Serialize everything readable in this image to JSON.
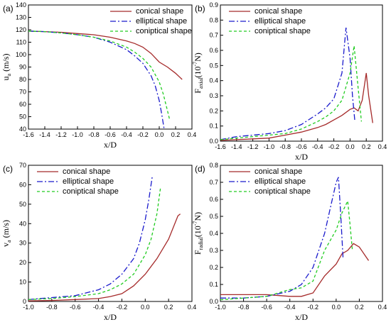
{
  "legend": {
    "conical": "conical shape",
    "elliptical": "elliptical shape",
    "coniptical": "coniptical shape"
  },
  "colors": {
    "conical": "#a52a2a",
    "elliptical": "#1a1acc",
    "coniptical": "#22cc22"
  },
  "chart_data": [
    {
      "id": "a",
      "panel_label": "(a)",
      "type": "line",
      "ylabel_main": "u",
      "ylabel_sub": "a",
      "ylabel_unit": " (m/s)",
      "xlabel": "x/D",
      "xlim": [
        -1.6,
        0.4
      ],
      "ylim": [
        40,
        140
      ],
      "xticks": [
        "-1.6",
        "-1.4",
        "-1.2",
        "-1.0",
        "-0.8",
        "-0.6",
        "-0.4",
        "-0.2",
        "0.0",
        "0.2",
        "0.4"
      ],
      "yticks": [
        "40",
        "50",
        "60",
        "70",
        "80",
        "90",
        "100",
        "110",
        "120",
        "130",
        "140"
      ],
      "legend_position": "top-right",
      "series": [
        {
          "key": "conical",
          "name": "conical shape",
          "x": [
            -1.6,
            -1.4,
            -1.2,
            -1.0,
            -0.8,
            -0.6,
            -0.4,
            -0.3,
            -0.2,
            -0.1,
            0.0,
            0.1,
            0.2,
            0.28
          ],
          "y": [
            119,
            118.5,
            118,
            117,
            116,
            114,
            111,
            109,
            106,
            101,
            94,
            90,
            85,
            80
          ]
        },
        {
          "key": "elliptical",
          "name": "elliptical shape",
          "x": [
            -1.6,
            -1.4,
            -1.2,
            -1.0,
            -0.8,
            -0.6,
            -0.4,
            -0.3,
            -0.2,
            -0.1,
            -0.05,
            0.0,
            0.03,
            0.06
          ],
          "y": [
            119,
            118.5,
            117.5,
            116,
            114,
            110,
            104,
            99,
            93,
            83,
            75,
            63,
            52,
            40
          ]
        },
        {
          "key": "coniptical",
          "name": "coniptical shape",
          "x": [
            -1.6,
            -1.4,
            -1.2,
            -1.0,
            -0.8,
            -0.6,
            -0.4,
            -0.3,
            -0.2,
            -0.1,
            0.0,
            0.05,
            0.1,
            0.13
          ],
          "y": [
            119,
            118.5,
            117.5,
            116,
            114,
            111,
            106,
            102,
            97,
            90,
            78,
            68,
            55,
            47
          ]
        }
      ]
    },
    {
      "id": "b",
      "panel_label": "(b)",
      "type": "line",
      "ylabel_main": "F",
      "ylabel_sub": "axial",
      "ylabel_unit": "(10",
      "ylabel_sup": "-7",
      "ylabel_tail": "N)",
      "xlabel": "x/D",
      "xlim": [
        -1.6,
        0.4
      ],
      "ylim": [
        0,
        0.9
      ],
      "xticks": [
        "-1.6",
        "-1.4",
        "-1.2",
        "-1.0",
        "-0.8",
        "-0.6",
        "-0.4",
        "-0.2",
        "0.0",
        "0.2",
        "0.4"
      ],
      "yticks": [
        "0.0",
        "0.1",
        "0.2",
        "0.3",
        "0.4",
        "0.5",
        "0.6",
        "0.7",
        "0.8",
        "0.9"
      ],
      "legend_position": "top-left",
      "series": [
        {
          "key": "conical",
          "name": "conical shape",
          "x": [
            -1.6,
            -1.4,
            -1.2,
            -1.0,
            -0.8,
            -0.6,
            -0.4,
            -0.3,
            -0.2,
            -0.1,
            0.0,
            0.05,
            0.1,
            0.15,
            0.2,
            0.23,
            0.28
          ],
          "y": [
            0.005,
            0.01,
            0.015,
            0.02,
            0.04,
            0.06,
            0.09,
            0.11,
            0.14,
            0.17,
            0.21,
            0.22,
            0.2,
            0.27,
            0.45,
            0.3,
            0.12
          ]
        },
        {
          "key": "elliptical",
          "name": "elliptical shape",
          "x": [
            -1.6,
            -1.4,
            -1.2,
            -1.0,
            -0.8,
            -0.6,
            -0.4,
            -0.3,
            -0.2,
            -0.1,
            -0.05,
            0.0,
            0.03,
            0.06
          ],
          "y": [
            0.01,
            0.03,
            0.04,
            0.05,
            0.07,
            0.11,
            0.18,
            0.22,
            0.28,
            0.45,
            0.75,
            0.55,
            0.3,
            0.13
          ]
        },
        {
          "key": "coniptical",
          "name": "coniptical shape",
          "x": [
            -1.6,
            -1.4,
            -1.2,
            -1.0,
            -0.8,
            -0.6,
            -0.4,
            -0.3,
            -0.2,
            -0.1,
            0.0,
            0.05,
            0.1,
            0.14
          ],
          "y": [
            0.01,
            0.02,
            0.03,
            0.04,
            0.05,
            0.08,
            0.13,
            0.16,
            0.2,
            0.27,
            0.45,
            0.63,
            0.35,
            0.13
          ]
        }
      ]
    },
    {
      "id": "c",
      "panel_label": "(c)",
      "type": "line",
      "ylabel_main": "v",
      "ylabel_sub": "a",
      "ylabel_unit": " (m/s)",
      "xlabel": "x/D",
      "xlim": [
        -1.0,
        0.4
      ],
      "ylim": [
        0,
        70
      ],
      "xticks": [
        "-1.0",
        "-0.8",
        "-0.6",
        "-0.4",
        "-0.2",
        "0.0",
        "0.2",
        "0.4"
      ],
      "yticks": [
        "0",
        "10",
        "20",
        "30",
        "40",
        "50",
        "60",
        "70"
      ],
      "legend_position": "top-left",
      "series": [
        {
          "key": "conical",
          "name": "conical shape",
          "x": [
            -1.0,
            -0.8,
            -0.6,
            -0.4,
            -0.3,
            -0.2,
            -0.1,
            0.0,
            0.1,
            0.2,
            0.28,
            0.3
          ],
          "y": [
            0.3,
            0.5,
            1,
            1.5,
            2.5,
            4,
            8,
            14,
            22,
            32,
            44,
            45
          ]
        },
        {
          "key": "elliptical",
          "name": "elliptical shape",
          "x": [
            -1.0,
            -0.8,
            -0.6,
            -0.4,
            -0.3,
            -0.2,
            -0.1,
            -0.05,
            0.0,
            0.03,
            0.06
          ],
          "y": [
            1,
            2,
            3,
            6,
            9,
            14,
            22,
            30,
            42,
            52,
            64
          ]
        },
        {
          "key": "coniptical",
          "name": "coniptical shape",
          "x": [
            -1.0,
            -0.8,
            -0.6,
            -0.4,
            -0.3,
            -0.2,
            -0.1,
            0.0,
            0.05,
            0.1,
            0.13
          ],
          "y": [
            1,
            1.5,
            2.5,
            4,
            6,
            9,
            14,
            24,
            32,
            45,
            58
          ]
        }
      ]
    },
    {
      "id": "d",
      "panel_label": "(d)",
      "type": "line",
      "ylabel_main": "F",
      "ylabel_sub": "radial",
      "ylabel_unit": "(10",
      "ylabel_sup": "-7",
      "ylabel_tail": "N)",
      "xlabel": "x/D",
      "xlim": [
        -1.0,
        0.4
      ],
      "ylim": [
        0,
        0.8
      ],
      "xticks": [
        "-1.0",
        "-0.8",
        "-0.6",
        "-0.4",
        "-0.2",
        "0.0",
        "0.2",
        "0.4"
      ],
      "yticks": [
        "0.0",
        "0.1",
        "0.2",
        "0.3",
        "0.4",
        "0.5",
        "0.6",
        "0.7",
        "0.8"
      ],
      "legend_position": "top-left",
      "series": [
        {
          "key": "conical",
          "name": "conical shape",
          "x": [
            -1.0,
            -0.8,
            -0.6,
            -0.4,
            -0.3,
            -0.2,
            -0.1,
            0.0,
            0.05,
            0.1,
            0.15,
            0.2,
            0.25,
            0.28
          ],
          "y": [
            0.04,
            0.04,
            0.04,
            0.03,
            0.03,
            0.05,
            0.15,
            0.22,
            0.28,
            0.3,
            0.34,
            0.32,
            0.27,
            0.24
          ]
        },
        {
          "key": "elliptical",
          "name": "elliptical shape",
          "x": [
            -1.0,
            -0.8,
            -0.6,
            -0.4,
            -0.3,
            -0.2,
            -0.1,
            -0.05,
            0.0,
            0.02,
            0.04,
            0.06
          ],
          "y": [
            0.02,
            0.02,
            0.03,
            0.06,
            0.1,
            0.2,
            0.4,
            0.55,
            0.7,
            0.73,
            0.5,
            0.25
          ]
        },
        {
          "key": "coniptical",
          "name": "coniptical shape",
          "x": [
            -1.0,
            -0.8,
            -0.6,
            -0.4,
            -0.3,
            -0.2,
            -0.1,
            0.0,
            0.05,
            0.1,
            0.12,
            0.14
          ],
          "y": [
            0.01,
            0.02,
            0.03,
            0.07,
            0.08,
            0.12,
            0.3,
            0.42,
            0.52,
            0.59,
            0.45,
            0.3
          ]
        }
      ]
    }
  ]
}
